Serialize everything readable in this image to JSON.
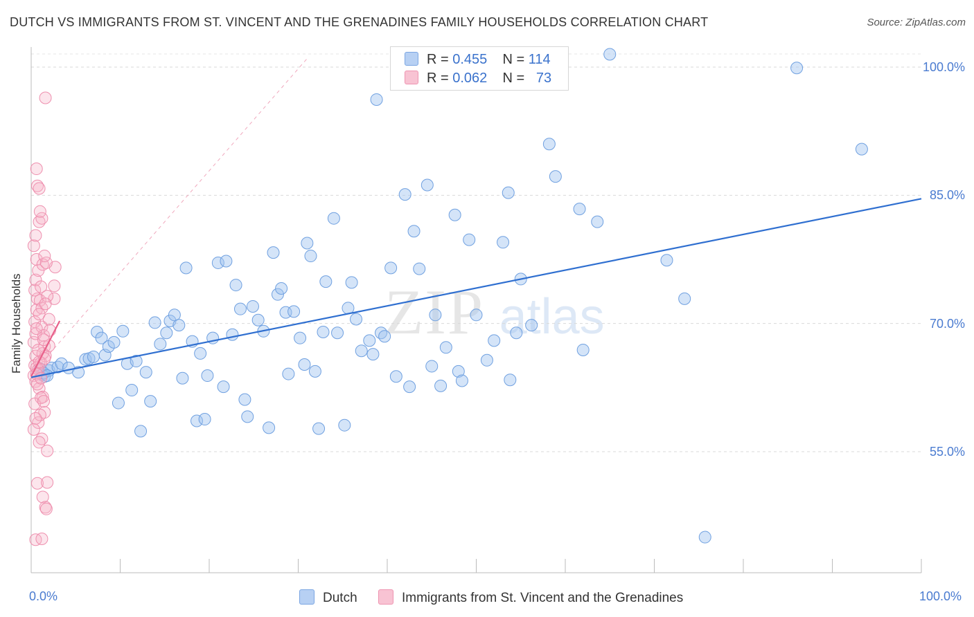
{
  "header": {
    "title": "DUTCH VS IMMIGRANTS FROM ST. VINCENT AND THE GRENADINES FAMILY HOUSEHOLDS CORRELATION CHART",
    "source": "Source: ZipAtlas.com"
  },
  "watermark": {
    "zip": "ZIP",
    "atlas": "atlas"
  },
  "legend": {
    "dutch": {
      "r_label": "R = ",
      "r_value": "0.455",
      "n_label": "N = ",
      "n_value": "114"
    },
    "svg": {
      "r_label": "R = ",
      "r_value": "0.062",
      "n_label": "N = ",
      "n_value": "73"
    }
  },
  "bottom_legend": {
    "dutch": "Dutch",
    "svg": "Immigrants from St. Vincent and the Grenadines"
  },
  "colors": {
    "dutch": "#6fa0e0",
    "dutch_fill": "rgba(160,195,240,0.45)",
    "dutch_line": "#2f6fd0",
    "svg": "#ee8fae",
    "svg_fill": "rgba(245,180,200,0.35)",
    "svg_line": "#e8608a",
    "tick": "#4a7bd0"
  },
  "chart_data": {
    "type": "scatter",
    "title": "DUTCH VS IMMIGRANTS FROM ST. VINCENT AND THE GRENADINES FAMILY HOUSEHOLDS CORRELATION CHART",
    "xlabel": "",
    "ylabel": "Family Households",
    "xlim": [
      0,
      100
    ],
    "ylim": [
      40,
      101.5
    ],
    "x_tick_labels": [
      "0.0%",
      "100.0%"
    ],
    "y_ticks": [
      55,
      70,
      85,
      100
    ],
    "y_tick_labels": [
      "55.0%",
      "70.0%",
      "85.0%",
      "100.0%"
    ],
    "grid": "horizontal dashed",
    "legend_position": "top-center",
    "series": [
      {
        "name": "Dutch",
        "R": 0.455,
        "N": 114,
        "trend": {
          "x": [
            0,
            100
          ],
          "y": [
            63.7,
            84.6
          ]
        },
        "points": [
          [
            1,
            64.7
          ],
          [
            1.2,
            64
          ],
          [
            1.5,
            63.8
          ],
          [
            2,
            64.5
          ],
          [
            2.3,
            64.8
          ],
          [
            3,
            64.9
          ],
          [
            3.4,
            65.3
          ],
          [
            4.2,
            64.8
          ],
          [
            5.3,
            64.3
          ],
          [
            6.1,
            65.8
          ],
          [
            6.5,
            65.9
          ],
          [
            7,
            66.1
          ],
          [
            7.4,
            69
          ],
          [
            7.9,
            68.3
          ],
          [
            8.3,
            66.3
          ],
          [
            8.7,
            67.3
          ],
          [
            9.3,
            67.8
          ],
          [
            9.8,
            60.7
          ],
          [
            10.3,
            69.1
          ],
          [
            10.8,
            65.3
          ],
          [
            11.3,
            62.2
          ],
          [
            11.8,
            65.6
          ],
          [
            12.3,
            57.4
          ],
          [
            12.9,
            64.3
          ],
          [
            13.4,
            60.9
          ],
          [
            13.9,
            70.1
          ],
          [
            14.5,
            67.6
          ],
          [
            15.2,
            68.9
          ],
          [
            15.6,
            70.3
          ],
          [
            16.1,
            71
          ],
          [
            16.6,
            69.8
          ],
          [
            17,
            63.6
          ],
          [
            17.4,
            76.5
          ],
          [
            18.1,
            67.9
          ],
          [
            18.6,
            58.6
          ],
          [
            19,
            66.5
          ],
          [
            19.5,
            58.8
          ],
          [
            19.8,
            63.9
          ],
          [
            20.4,
            68.3
          ],
          [
            21,
            77.1
          ],
          [
            21.6,
            62.6
          ],
          [
            21.9,
            77.3
          ],
          [
            22.6,
            68.7
          ],
          [
            23,
            74.5
          ],
          [
            23.5,
            71.7
          ],
          [
            24,
            61.1
          ],
          [
            24.3,
            59.1
          ],
          [
            24.9,
            72
          ],
          [
            25.5,
            70.4
          ],
          [
            26.1,
            69.1
          ],
          [
            26.7,
            57.8
          ],
          [
            27.2,
            78.3
          ],
          [
            27.7,
            73.4
          ],
          [
            28.1,
            74.1
          ],
          [
            28.6,
            71.3
          ],
          [
            28.9,
            64.1
          ],
          [
            29.5,
            71.4
          ],
          [
            30.2,
            68.3
          ],
          [
            30.7,
            65.2
          ],
          [
            31,
            79.4
          ],
          [
            31.4,
            77.9
          ],
          [
            31.9,
            64.4
          ],
          [
            32.3,
            57.7
          ],
          [
            32.8,
            69
          ],
          [
            33.1,
            74.9
          ],
          [
            34,
            82.3
          ],
          [
            34.4,
            68.9
          ],
          [
            35.2,
            58.1
          ],
          [
            35.6,
            71.8
          ],
          [
            36,
            74.8
          ],
          [
            36.5,
            70.5
          ],
          [
            37.1,
            66.8
          ],
          [
            38,
            68
          ],
          [
            38.4,
            66.4
          ],
          [
            38.8,
            96.2
          ],
          [
            39.3,
            68.9
          ],
          [
            39.7,
            68.5
          ],
          [
            40.4,
            76.5
          ],
          [
            41,
            63.8
          ],
          [
            42,
            85.1
          ],
          [
            42.5,
            62.6
          ],
          [
            43,
            80.8
          ],
          [
            43.6,
            76.4
          ],
          [
            44.5,
            86.2
          ],
          [
            45,
            65
          ],
          [
            45.4,
            71
          ],
          [
            46,
            62.7
          ],
          [
            46.6,
            67.2
          ],
          [
            47.6,
            82.7
          ],
          [
            48,
            64.4
          ],
          [
            48.4,
            63.3
          ],
          [
            49.2,
            79.8
          ],
          [
            50,
            71
          ],
          [
            51.2,
            65.7
          ],
          [
            52,
            68
          ],
          [
            53,
            79.5
          ],
          [
            53.6,
            85.3
          ],
          [
            53.8,
            63.4
          ],
          [
            54.5,
            68.9
          ],
          [
            55,
            75.2
          ],
          [
            56.2,
            69.8
          ],
          [
            58.2,
            91
          ],
          [
            58.9,
            87.2
          ],
          [
            61.6,
            83.4
          ],
          [
            62,
            66.9
          ],
          [
            63.6,
            81.9
          ],
          [
            65,
            101.5
          ],
          [
            71.4,
            77.4
          ],
          [
            73.4,
            72.9
          ],
          [
            75.7,
            45
          ],
          [
            86,
            99.9
          ],
          [
            93.3,
            90.4
          ],
          [
            1.4,
            64.2
          ],
          [
            1.8,
            63.9
          ]
        ]
      },
      {
        "name": "Immigrants from St. Vincent and the Grenadines",
        "R": 0.062,
        "N": 73,
        "trend": {
          "x": [
            0,
            3.2
          ],
          "y": [
            63.8,
            70.3
          ]
        },
        "points": [
          [
            0.3,
            63.9
          ],
          [
            0.4,
            65.1
          ],
          [
            0.5,
            66.2
          ],
          [
            0.6,
            64.8
          ],
          [
            0.3,
            67.8
          ],
          [
            0.5,
            68.8
          ],
          [
            0.4,
            70.2
          ],
          [
            0.6,
            71.6
          ],
          [
            0.7,
            72.9
          ],
          [
            0.4,
            73.9
          ],
          [
            0.5,
            75.1
          ],
          [
            0.8,
            76.2
          ],
          [
            0.6,
            77.5
          ],
          [
            0.3,
            79.1
          ],
          [
            0.5,
            80.3
          ],
          [
            0.9,
            81.9
          ],
          [
            1.2,
            82.3
          ],
          [
            1,
            83.1
          ],
          [
            1.3,
            76.9
          ],
          [
            0.7,
            86.1
          ],
          [
            0.9,
            85.8
          ],
          [
            0.6,
            88.1
          ],
          [
            1.1,
            74.3
          ],
          [
            1,
            72.7
          ],
          [
            1.2,
            71.8
          ],
          [
            0.9,
            71.1
          ],
          [
            1.2,
            69.6
          ],
          [
            1.4,
            68.6
          ],
          [
            1.5,
            67.3
          ],
          [
            1.6,
            66.2
          ],
          [
            1.1,
            65.4
          ],
          [
            0.8,
            64.6
          ],
          [
            0.5,
            63.2
          ],
          [
            0.9,
            62.4
          ],
          [
            1.3,
            61.4
          ],
          [
            0.4,
            60.6
          ],
          [
            1.5,
            59.6
          ],
          [
            0.8,
            58.4
          ],
          [
            0.3,
            57.6
          ],
          [
            1.2,
            56.5
          ],
          [
            0.9,
            56.1
          ],
          [
            1.8,
            55.1
          ],
          [
            0.7,
            51.3
          ],
          [
            1.8,
            51.4
          ],
          [
            1.3,
            49.7
          ],
          [
            1.6,
            48.5
          ],
          [
            1.7,
            48.3
          ],
          [
            0.5,
            44.7
          ],
          [
            1.2,
            44.8
          ],
          [
            1.6,
            96.4
          ],
          [
            2.7,
            76.6
          ],
          [
            2.6,
            74.4
          ],
          [
            2.6,
            72.9
          ],
          [
            1.7,
            77.1
          ],
          [
            1.5,
            77.9
          ],
          [
            1.8,
            73.2
          ],
          [
            1.6,
            72.3
          ],
          [
            2.1,
            69.2
          ],
          [
            2,
            67.4
          ],
          [
            1.3,
            66.5
          ],
          [
            0.9,
            65.5
          ],
          [
            0.6,
            64.1
          ],
          [
            0.7,
            62.9
          ],
          [
            1.1,
            61.3
          ],
          [
            1.4,
            60.9
          ],
          [
            1.0,
            59.3
          ],
          [
            0.5,
            58.9
          ],
          [
            1.1,
            63.6
          ],
          [
            1.4,
            68.1
          ],
          [
            2.0,
            70.5
          ],
          [
            0.6,
            69.4
          ],
          [
            1.5,
            65.9
          ],
          [
            0.8,
            66.9
          ]
        ]
      }
    ]
  }
}
